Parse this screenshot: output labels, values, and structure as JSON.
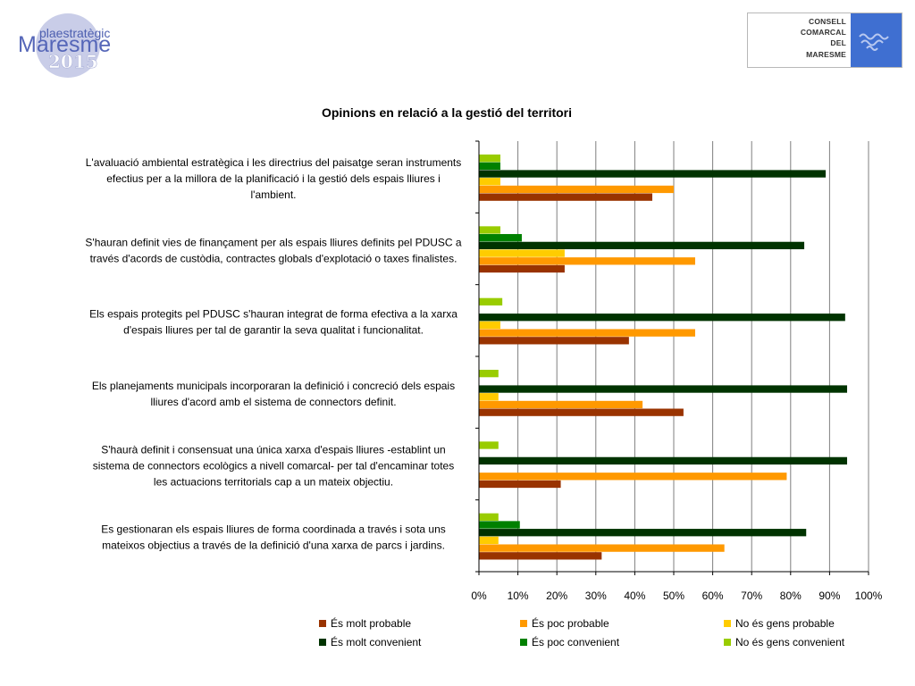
{
  "logo_left": {
    "line1": "plaestratègic",
    "line2": "Maresme",
    "line3": "2015"
  },
  "logo_right": {
    "lines": [
      "CONSELL",
      "COMARCAL",
      "DEL",
      "MARESME"
    ]
  },
  "colors": {
    "es_molt_probable": "#993300",
    "es_poc_probable": "#ff9900",
    "no_es_gens_probable": "#ffcc00",
    "es_molt_convenient": "#003300",
    "es_poc_convenient": "#008000",
    "no_es_gens_convenient": "#99cc00"
  },
  "chart_data": {
    "type": "bar",
    "orientation": "horizontal",
    "title": "Opinions en relació a la gestió del territori",
    "xlim": [
      0,
      100
    ],
    "x_ticks": [
      "0%",
      "10%",
      "20%",
      "30%",
      "40%",
      "50%",
      "60%",
      "70%",
      "80%",
      "90%",
      "100%"
    ],
    "grid": true,
    "legend_position": "bottom",
    "categories": [
      [
        "L'avaluació ambiental estratègica i les directrius del paisatge seran instruments",
        "efectius per a la millora de la planificació i la gestió dels espais lliures i",
        "l'ambient."
      ],
      [
        "S'hauran definit vies de finançament per als espais lliures definits pel PDUSC a",
        "través d'acords de custòdia, contractes globals d'explotació o taxes finalistes."
      ],
      [
        "Els espais protegits pel PDUSC s'hauran integrat de forma efectiva a la xarxa",
        "d'espais lliures per tal de garantir la seva qualitat i funcionalitat."
      ],
      [
        "Els planejaments municipals incorporaran la definició i concreció dels espais",
        "lliures d'acord amb el sistema de connectors definit."
      ],
      [
        "S'haurà definit i consensuat una única xarxa d'espais lliures -establint un",
        "sistema de connectors ecològics a nivell comarcal- per tal d'encaminar totes",
        "les actuacions territorials cap a un mateix objectiu."
      ],
      [
        "Es gestionaran els espais lliures de forma coordinada a través i sota uns",
        "mateixos objectius a través de la definició d'una xarxa de parcs i jardins."
      ]
    ],
    "series": [
      {
        "name": "És molt probable",
        "values": [
          44.5,
          22,
          38.5,
          52.5,
          21,
          31.5
        ]
      },
      {
        "name": "És poc probable",
        "values": [
          50,
          55.5,
          55.5,
          42,
          79,
          63
        ]
      },
      {
        "name": "No és gens probable",
        "values": [
          5.5,
          22,
          5.5,
          5,
          0,
          5
        ]
      },
      {
        "name": "És molt convenient",
        "values": [
          89,
          83.5,
          94,
          94.5,
          94.5,
          84
        ]
      },
      {
        "name": "És poc convenient",
        "values": [
          5.5,
          11,
          0,
          0,
          0,
          10.5
        ]
      },
      {
        "name": "No és gens convenient",
        "values": [
          5.5,
          5.5,
          6,
          5,
          5,
          5
        ]
      }
    ]
  }
}
